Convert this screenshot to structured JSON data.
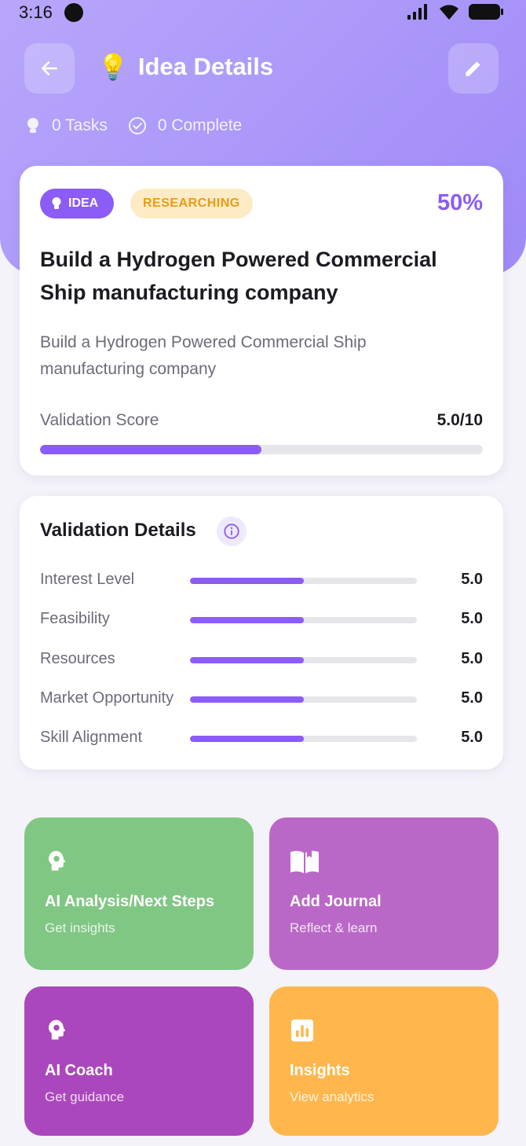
{
  "status_bar": {
    "time": "3:16"
  },
  "header": {
    "title": "Idea Details",
    "title_emoji": "💡",
    "stats": {
      "tasks": "0 Tasks",
      "complete": "0 Complete"
    }
  },
  "idea_card": {
    "badge_type": "IDEA",
    "badge_status": "RESEARCHING",
    "progress_percent": "50%",
    "title": "Build a Hydrogen Powered Commercial Ship manufacturing company",
    "description": "Build a Hydrogen Powered Commercial Ship manufacturing company",
    "validation_score_label": "Validation Score",
    "validation_score_value": "5.0/10",
    "validation_score_fraction": 0.5
  },
  "validation_details": {
    "title": "Validation Details",
    "metrics": [
      {
        "label": "Interest Level",
        "value": "5.0",
        "fraction": 0.5
      },
      {
        "label": "Feasibility",
        "value": "5.0",
        "fraction": 0.5
      },
      {
        "label": "Resources",
        "value": "5.0",
        "fraction": 0.5
      },
      {
        "label": "Market Opportunity",
        "value": "5.0",
        "fraction": 0.5
      },
      {
        "label": "Skill Alignment",
        "value": "5.0",
        "fraction": 0.5
      }
    ]
  },
  "actions": [
    {
      "title": "AI Analysis/Next Steps",
      "subtitle": "Get insights",
      "icon": "brain-gear-icon",
      "color": "#81c784"
    },
    {
      "title": "Add Journal",
      "subtitle": "Reflect & learn",
      "icon": "book-open-icon",
      "color": "#ba68c8"
    },
    {
      "title": "AI Coach",
      "subtitle": "Get guidance",
      "icon": "brain-gear-icon",
      "color": "#ab47bc"
    },
    {
      "title": "Insights",
      "subtitle": "View analytics",
      "icon": "analytics-icon",
      "color": "#ffb74d"
    }
  ],
  "colors": {
    "accent": "#8b5cf6",
    "status_badge_bg": "#fdebc6",
    "status_badge_text": "#ec9b12",
    "track": "#e6e5ea"
  }
}
